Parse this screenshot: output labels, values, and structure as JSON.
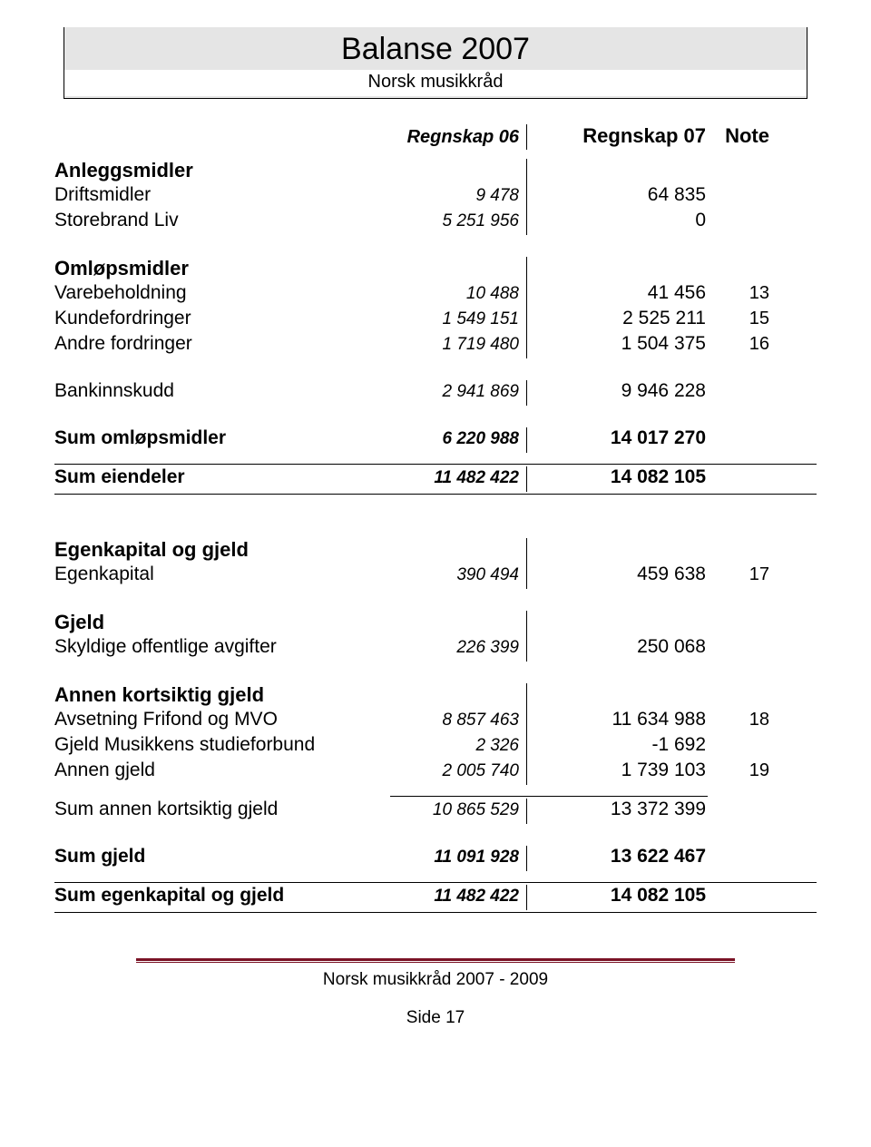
{
  "header": {
    "title": "Balanse 2007",
    "subtitle": "Norsk musikkråd"
  },
  "columns": {
    "c06": "Regnskap 06",
    "c07": "Regnskap 07",
    "note": "Note"
  },
  "s1": {
    "head": "Anleggsmidler",
    "r1": {
      "label": "Driftsmidler",
      "v06": "9 478",
      "v07": "64 835",
      "note": ""
    },
    "r2": {
      "label": "Storebrand Liv",
      "v06": "5 251 956",
      "v07": "0",
      "note": ""
    }
  },
  "s2": {
    "head": "Omløpsmidler",
    "r1": {
      "label": "Varebeholdning",
      "v06": "10 488",
      "v07": "41 456",
      "note": "13"
    },
    "r2": {
      "label": "Kundefordringer",
      "v06": "1 549 151",
      "v07": "2 525 211",
      "note": "15"
    },
    "r3": {
      "label": "Andre fordringer",
      "v06": "1 719 480",
      "v07": "1 504 375",
      "note": "16"
    }
  },
  "s3": {
    "r1": {
      "label": "Bankinnskudd",
      "v06": "2 941 869",
      "v07": "9 946 228",
      "note": ""
    }
  },
  "sum1": {
    "label": "Sum omløpsmidler",
    "v06": "6 220 988",
    "v07": "14 017 270",
    "note": ""
  },
  "sum2": {
    "label": "Sum eiendeler",
    "v06": "11 482 422",
    "v07": "14 082 105",
    "note": ""
  },
  "s4": {
    "head": "Egenkapital og gjeld",
    "r1": {
      "label": "Egenkapital",
      "v06": "390 494",
      "v07": "459 638",
      "note": "17"
    }
  },
  "s5": {
    "head": "Gjeld",
    "r1": {
      "label": "Skyldige offentlige avgifter",
      "v06": "226 399",
      "v07": "250 068",
      "note": ""
    }
  },
  "s6": {
    "head": "Annen kortsiktig gjeld",
    "r1": {
      "label": "Avsetning Frifond og MVO",
      "v06": "8 857 463",
      "v07": "11 634 988",
      "note": "18"
    },
    "r2": {
      "label": "Gjeld Musikkens studieforbund",
      "v06": "2 326",
      "v07": "-1 692",
      "note": ""
    },
    "r3": {
      "label": "Annen gjeld",
      "v06": "2 005 740",
      "v07": "1 739 103",
      "note": "19"
    }
  },
  "sum3": {
    "label": "Sum annen kortsiktig gjeld",
    "v06": "10 865 529",
    "v07": "13 372 399",
    "note": ""
  },
  "sum4": {
    "label": "Sum gjeld",
    "v06": "11 091 928",
    "v07": "13 622 467",
    "note": ""
  },
  "sum5": {
    "label": "Sum egenkapital og gjeld",
    "v06": "11 482 422",
    "v07": "14 082 105",
    "note": ""
  },
  "footer": {
    "text": "Norsk musikkråd 2007 - 2009",
    "page": "Side 17"
  }
}
